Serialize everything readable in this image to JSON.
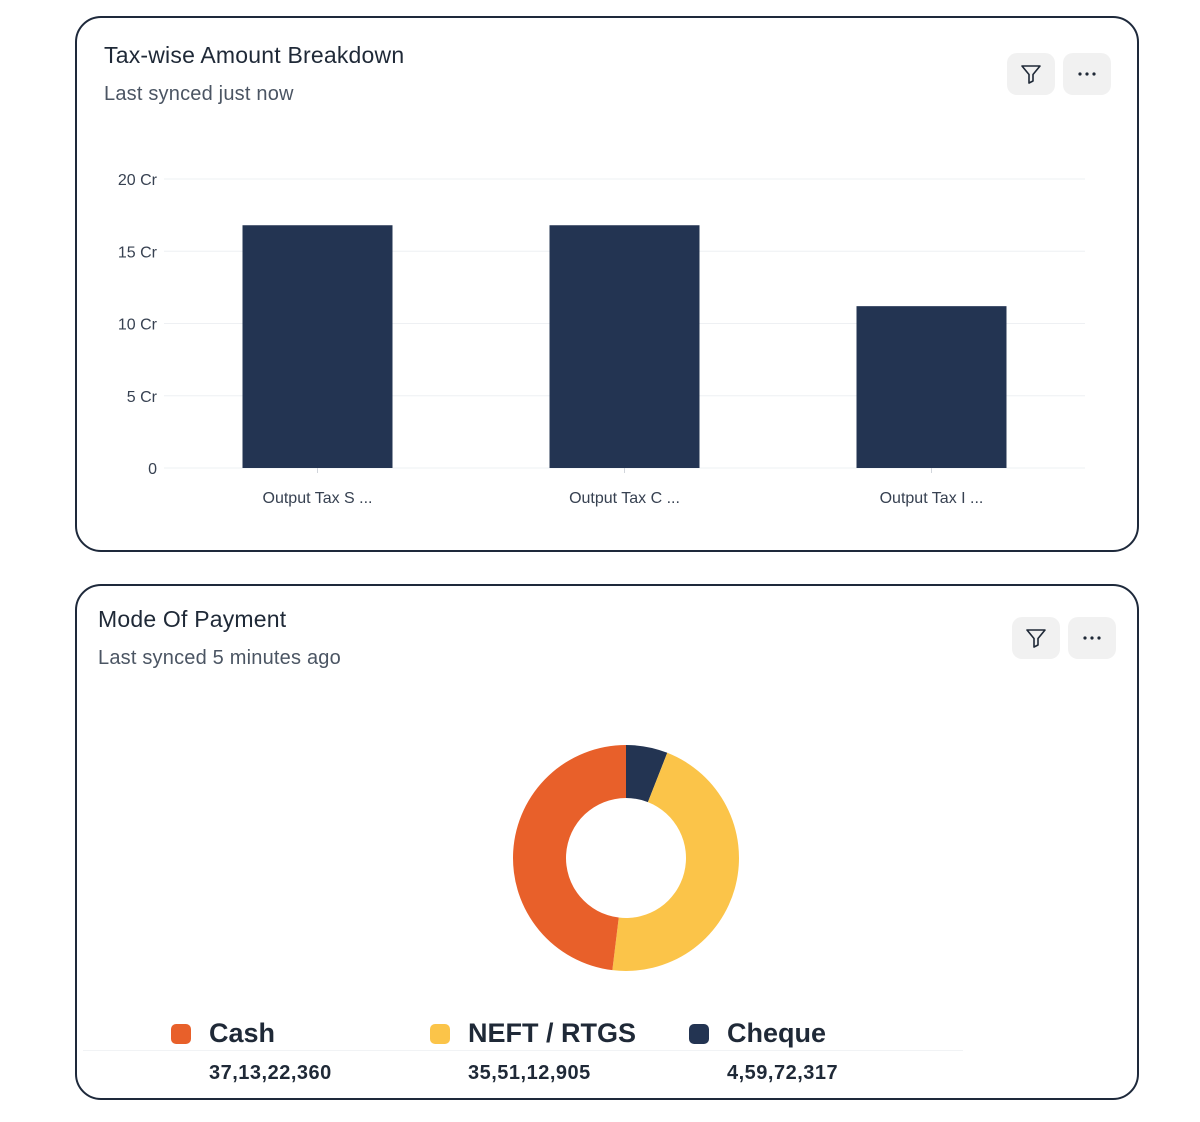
{
  "tax_card": {
    "title": "Tax-wise Amount Breakdown",
    "subtitle": "Last synced just now",
    "filter_icon": "filter-icon",
    "more_icon": "more-horizontal-icon"
  },
  "payment_card": {
    "title": "Mode Of Payment",
    "subtitle": "Last synced 5 minutes ago",
    "filter_icon": "filter-icon",
    "more_icon": "more-horizontal-icon"
  },
  "colors": {
    "bar": "#233452",
    "grid": "#eef0f3",
    "axis_text": "#374151",
    "cash": "#e8602a",
    "neft": "#fbc449",
    "cheque": "#233452"
  },
  "chart_data": [
    {
      "type": "bar",
      "title": "Tax-wise Amount Breakdown",
      "categories": [
        "Output Tax S ...",
        "Output Tax C ...",
        "Output Tax I ..."
      ],
      "values": [
        16.8,
        16.8,
        11.2
      ],
      "ylim": [
        0,
        20
      ],
      "yticks": [
        0,
        5,
        10,
        15,
        20
      ],
      "ytick_labels": [
        "0",
        "5 Cr",
        "10 Cr",
        "15 Cr",
        "20 Cr"
      ],
      "grid": true
    },
    {
      "type": "pie",
      "title": "Mode Of Payment",
      "donut": true,
      "legend_position": "bottom",
      "labels": [
        "Cash",
        "NEFT / RTGS",
        "Cheque"
      ],
      "values": [
        371322360,
        355112905,
        45972317
      ],
      "value_labels": [
        "37,13,22,360",
        "35,51,12,905",
        "4,59,72,317"
      ]
    }
  ]
}
